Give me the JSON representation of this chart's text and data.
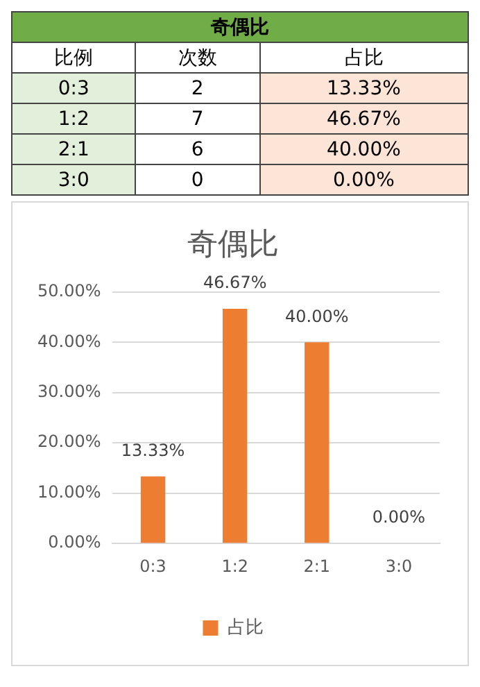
{
  "chart_data": [
    {
      "type": "other",
      "title": "奇偶比",
      "xlabel": "比例",
      "categories": [
        "0:3",
        "1:2",
        "2:1",
        "3:0"
      ],
      "data_labels": true,
      "series": [
        {
          "name": "次数",
          "values": [
            2,
            7,
            6,
            0
          ]
        },
        {
          "name": "占比",
          "values": [
            13.33,
            46.67,
            40,
            0
          ],
          "value_labels": [
            "13.33%",
            "46.67%",
            "40.00%",
            "0.00%"
          ]
        }
      ]
    },
    {
      "type": "bar",
      "title": "奇偶比",
      "categories": [
        "0:3",
        "1:2",
        "2:1",
        "3:0"
      ],
      "series": [
        {
          "name": "占比",
          "color": "#ed7d31",
          "values": [
            13.33,
            46.67,
            40,
            0
          ],
          "value_labels": [
            "13.33%",
            "46.67%",
            "40.00%",
            "0.00%"
          ]
        }
      ],
      "ylim": [
        0,
        50
      ],
      "yticks": [
        {
          "value": 0,
          "label": "0.00%"
        },
        {
          "value": 10,
          "label": "10.00%"
        },
        {
          "value": 20,
          "label": "20.00%"
        },
        {
          "value": 30,
          "label": "30.00%"
        },
        {
          "value": 40,
          "label": "40.00%"
        },
        {
          "value": 50,
          "label": "50.00%"
        }
      ],
      "grid": "y",
      "legend": "bottom"
    }
  ]
}
